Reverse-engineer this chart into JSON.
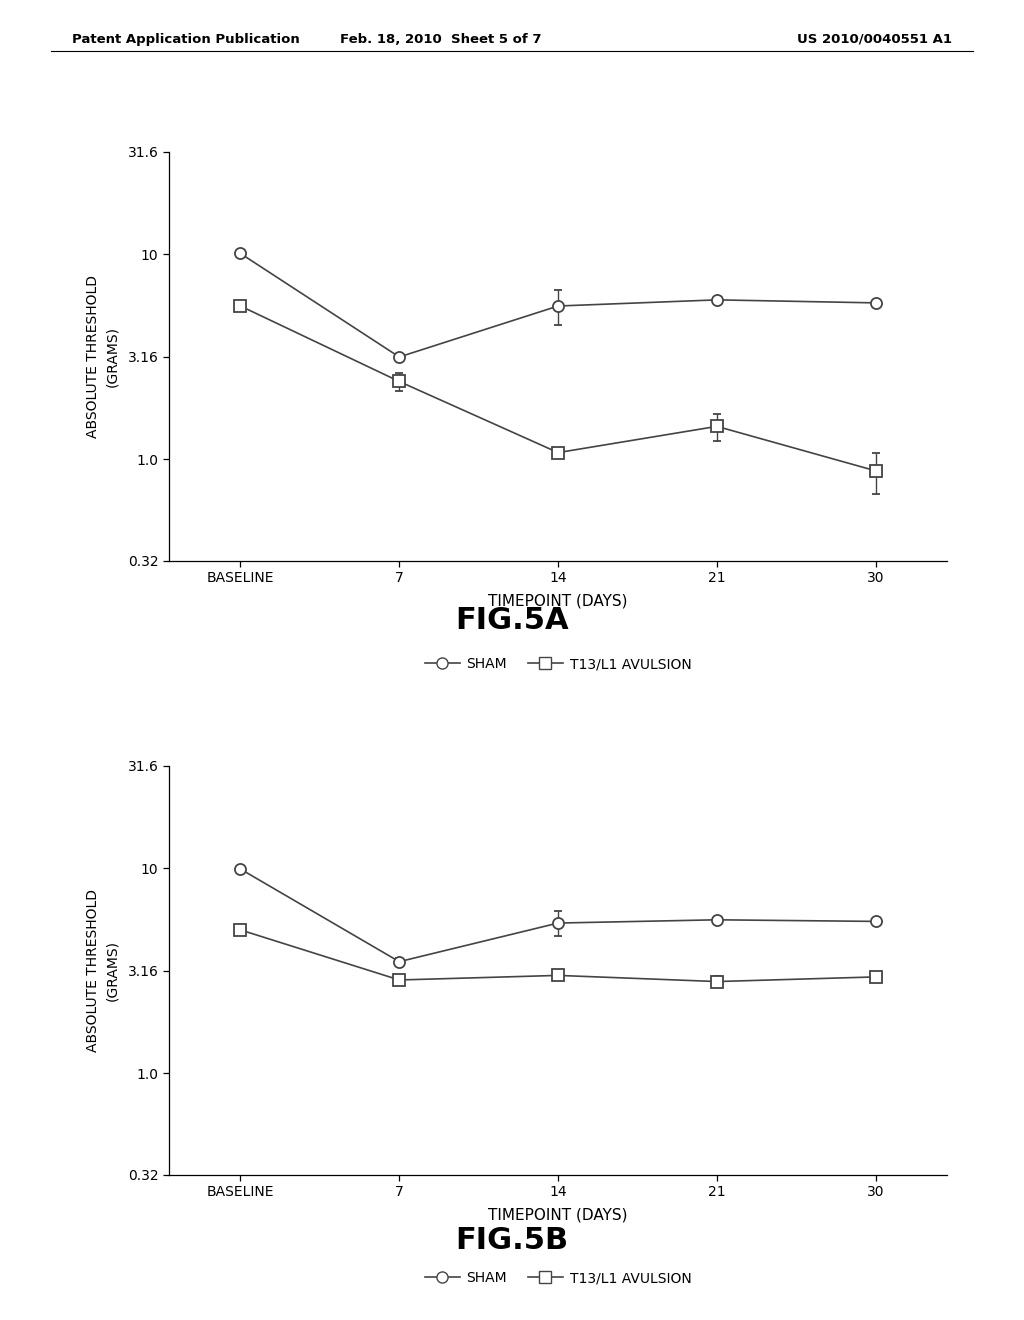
{
  "header_left": "Patent Application Publication",
  "header_mid": "Feb. 18, 2010  Sheet 5 of 7",
  "header_right": "US 2010/0040551 A1",
  "fig5a": {
    "title": "FIG.5A",
    "sham_y": [
      10.1,
      3.16,
      5.6,
      6.0,
      5.8
    ],
    "sham_yerr": [
      0.22,
      0.12,
      1.1,
      0.12,
      0.12
    ],
    "avul_y": [
      5.6,
      2.4,
      1.08,
      1.45,
      0.88
    ],
    "avul_yerr": [
      0.25,
      0.25,
      0.06,
      0.22,
      0.2
    ]
  },
  "fig5b": {
    "title": "FIG.5B",
    "sham_y": [
      9.9,
      3.5,
      5.4,
      5.6,
      5.5
    ],
    "sham_yerr": [
      0.12,
      0.15,
      0.75,
      0.1,
      0.1
    ],
    "avul_y": [
      5.0,
      2.85,
      3.0,
      2.8,
      2.95
    ],
    "avul_yerr": [
      0.12,
      0.12,
      0.1,
      0.18,
      0.08
    ]
  },
  "x_positions": [
    0,
    1,
    2,
    3,
    4
  ],
  "x_ticklabels": [
    "BASELINE",
    "7",
    "14",
    "21",
    "30"
  ],
  "xlabel": "TIMEPOINT (DAYS)",
  "ylabel": "ABSOLUTE THRESHOLD\n(GRAMS)",
  "yticks": [
    0.32,
    1.0,
    3.16,
    10.0,
    31.6
  ],
  "yticklabels": [
    "0.32",
    "1.0",
    "3.16",
    "10",
    "31.6"
  ],
  "ylim_log": [
    -0.495,
    1.5
  ],
  "sham_label": "SHAM",
  "avul_label": "T13/L1 AVULSION",
  "line_color": "#444444",
  "marker_size": 8,
  "line_width": 1.2,
  "capsize": 3,
  "elinewidth": 1.0,
  "bg_color": "#ffffff",
  "axes_facecolor": "#ffffff"
}
